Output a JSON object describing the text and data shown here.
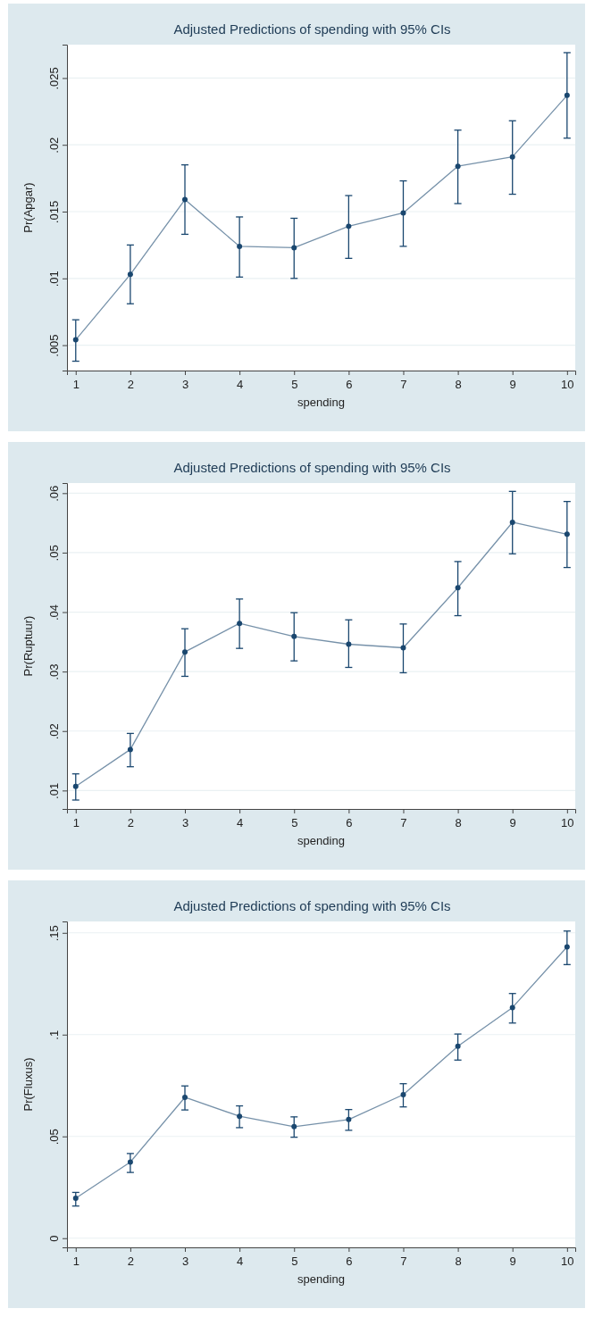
{
  "chart_data": [
    {
      "type": "line",
      "title": "Adjusted Predictions of spending with 95% CIs",
      "xlabel": "spending",
      "ylabel": "Pr(Apgar)",
      "x": [
        1,
        2,
        3,
        4,
        5,
        6,
        7,
        8,
        9,
        10
      ],
      "xlim": [
        0.84,
        10.15
      ],
      "xticks": [
        1,
        2,
        3,
        4,
        5,
        6,
        7,
        8,
        9,
        10
      ],
      "ylim": [
        0.0031,
        0.0275
      ],
      "yticks": [
        {
          "value": 0.005,
          "label": ".005"
        },
        {
          "value": 0.01,
          "label": ".01"
        },
        {
          "value": 0.015,
          "label": ".015"
        },
        {
          "value": 0.02,
          "label": ".02"
        },
        {
          "value": 0.025,
          "label": ".025"
        }
      ],
      "grid": "y",
      "marker": "circle",
      "line_style": "solid",
      "series": [
        {
          "color": "#1a476f",
          "values": [
            0.0054,
            0.0103,
            0.0159,
            0.0124,
            0.0123,
            0.0139,
            0.0149,
            0.0184,
            0.0191,
            0.0237
          ],
          "errors": [
            [
              0.0038,
              0.0069
            ],
            [
              0.0081,
              0.0125
            ],
            [
              0.0133,
              0.0185
            ],
            [
              0.0101,
              0.0146
            ],
            [
              0.01,
              0.0145
            ],
            [
              0.0115,
              0.0162
            ],
            [
              0.0124,
              0.0173
            ],
            [
              0.0156,
              0.0211
            ],
            [
              0.0163,
              0.0218
            ],
            [
              0.0205,
              0.0269
            ]
          ]
        }
      ]
    },
    {
      "type": "line",
      "title": "Adjusted Predictions of spending with 95% CIs",
      "xlabel": "spending",
      "ylabel": "Pr(Ruptuur)",
      "x": [
        1,
        2,
        3,
        4,
        5,
        6,
        7,
        8,
        9,
        10
      ],
      "xlim": [
        0.84,
        10.15
      ],
      "xticks": [
        1,
        2,
        3,
        4,
        5,
        6,
        7,
        8,
        9,
        10
      ],
      "ylim": [
        0.0069,
        0.0617
      ],
      "yticks": [
        {
          "value": 0.01,
          "label": ".01"
        },
        {
          "value": 0.02,
          "label": ".02"
        },
        {
          "value": 0.03,
          "label": ".03"
        },
        {
          "value": 0.04,
          "label": ".04"
        },
        {
          "value": 0.05,
          "label": ".05"
        },
        {
          "value": 0.06,
          "label": ".06"
        }
      ],
      "grid": "y",
      "marker": "circle",
      "line_style": "solid",
      "series": [
        {
          "color": "#1a476f",
          "values": [
            0.0107,
            0.0169,
            0.0333,
            0.0381,
            0.0359,
            0.0346,
            0.034,
            0.0441,
            0.0551,
            0.0531
          ],
          "errors": [
            [
              0.0084,
              0.0128
            ],
            [
              0.014,
              0.0196
            ],
            [
              0.0292,
              0.0372
            ],
            [
              0.0339,
              0.0422
            ],
            [
              0.0318,
              0.0399
            ],
            [
              0.0307,
              0.0387
            ],
            [
              0.0298,
              0.038
            ],
            [
              0.0394,
              0.0485
            ],
            [
              0.0498,
              0.0603
            ],
            [
              0.0475,
              0.0586
            ]
          ]
        }
      ]
    },
    {
      "type": "line",
      "title": "Adjusted Predictions of spending with 95% CIs",
      "xlabel": "spending",
      "ylabel": "Pr(Fluxus)",
      "x": [
        1,
        2,
        3,
        4,
        5,
        6,
        7,
        8,
        9,
        10
      ],
      "xlim": [
        0.84,
        10.15
      ],
      "xticks": [
        1,
        2,
        3,
        4,
        5,
        6,
        7,
        8,
        9,
        10
      ],
      "ylim": [
        -0.0045,
        0.1556
      ],
      "yticks": [
        {
          "value": 0,
          "label": "0"
        },
        {
          "value": 0.05,
          "label": ".05"
        },
        {
          "value": 0.1,
          "label": ".1"
        },
        {
          "value": 0.15,
          "label": ".15"
        }
      ],
      "grid": "y",
      "marker": "circle",
      "line_style": "solid",
      "series": [
        {
          "color": "#1a476f",
          "values": [
            0.0196,
            0.0374,
            0.0692,
            0.0599,
            0.0548,
            0.0583,
            0.0705,
            0.0943,
            0.1133,
            0.1431
          ],
          "errors": [
            [
              0.0158,
              0.0225
            ],
            [
              0.0323,
              0.0416
            ],
            [
              0.063,
              0.0748
            ],
            [
              0.0543,
              0.065
            ],
            [
              0.0496,
              0.0596
            ],
            [
              0.053,
              0.0632
            ],
            [
              0.0645,
              0.0759
            ],
            [
              0.0875,
              0.1003
            ],
            [
              0.1057,
              0.1202
            ],
            [
              0.1344,
              0.1509
            ]
          ]
        }
      ]
    }
  ]
}
